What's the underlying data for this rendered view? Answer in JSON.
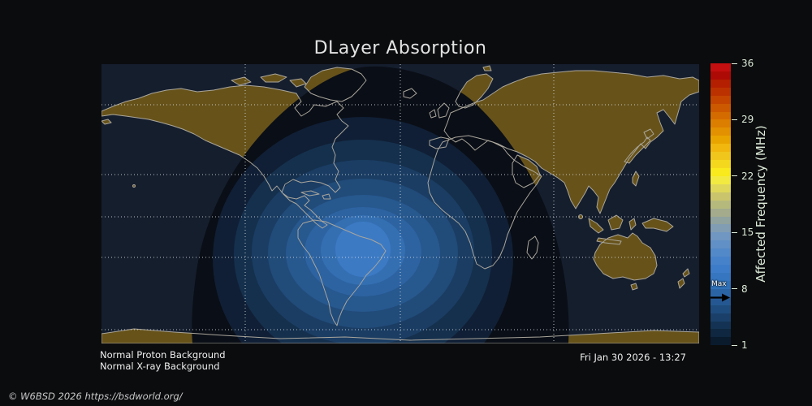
{
  "title": "DLayer Absorption",
  "status": {
    "proton": "Normal Proton Background",
    "xray": "Normal X-ray Background"
  },
  "timestamp": "Fri Jan 30 2026 - 13:27",
  "copyright": "© W6BSD 2026 https://bsdworld.org/",
  "colorbar": {
    "label": "Affected Frequency (MHz)",
    "range": [
      1,
      36
    ],
    "ticks": [
      36,
      29,
      22,
      15,
      8,
      1
    ],
    "max_label": "Max",
    "max_value_mhz": 8,
    "colors_top_to_bottom": [
      "#c30f0f",
      "#ad0a05",
      "#b31f00",
      "#bb3200",
      "#c34500",
      "#cc5800",
      "#d46b00",
      "#dc7e00",
      "#e39100",
      "#eaa400",
      "#f1b70e",
      "#f0c61c",
      "#f4d81e",
      "#f8ea1c",
      "#f2ea40",
      "#ded75a",
      "#cac56c",
      "#b6b97c",
      "#a3ab8c",
      "#91a39e",
      "#809db4",
      "#7096c2",
      "#6190c6",
      "#5289c8",
      "#4682ca",
      "#3d7cc8",
      "#3676c0",
      "#3070b6",
      "#2a64a4",
      "#255892",
      "#1f4c7e",
      "#1a4069",
      "#143354",
      "#0f2740",
      "#0a1b2e"
    ]
  },
  "map_style": {
    "ocean": "#151e2d",
    "land": "#67531a",
    "coastline": "#aaa69c",
    "grid": "#d8dde2",
    "shadow": "#0a0e16",
    "band_colors_outer_to_inner": [
      "#101f35",
      "#15304d",
      "#1b3d63",
      "#214b79",
      "#27588e",
      "#2d63a1",
      "#346fb2",
      "#3c7ac4"
    ]
  },
  "chart_data": {
    "type": "heatmap",
    "title": "DLayer Absorption",
    "colorbar_label": "Affected Frequency (MHz)",
    "colorbar_range_mhz": [
      1,
      36
    ],
    "colorbar_ticks_mhz": [
      1,
      8,
      15,
      22,
      29,
      36
    ],
    "max_affected_frequency_mhz": 8,
    "peak_absorption_region": {
      "description": "Concentric absorption contours centered over the South Atlantic between Brazil and West Africa (subsolar region)",
      "approx_lon_deg": -25,
      "approx_lat_deg": -15
    },
    "contour_bands_mhz": [
      1,
      2,
      3,
      4,
      5,
      6,
      7,
      8
    ],
    "graticule": {
      "latitude_lines_deg": [
        60,
        30,
        0,
        -30,
        -60
      ],
      "longitude_lines_deg": [
        -90,
        0,
        90
      ]
    },
    "annotations": [
      "Normal Proton Background",
      "Normal X-ray Background",
      "Fri Jan 30 2026 - 13:27"
    ],
    "legend_position": "right colorbar",
    "projection": "cylindrical world map, dark theme"
  }
}
